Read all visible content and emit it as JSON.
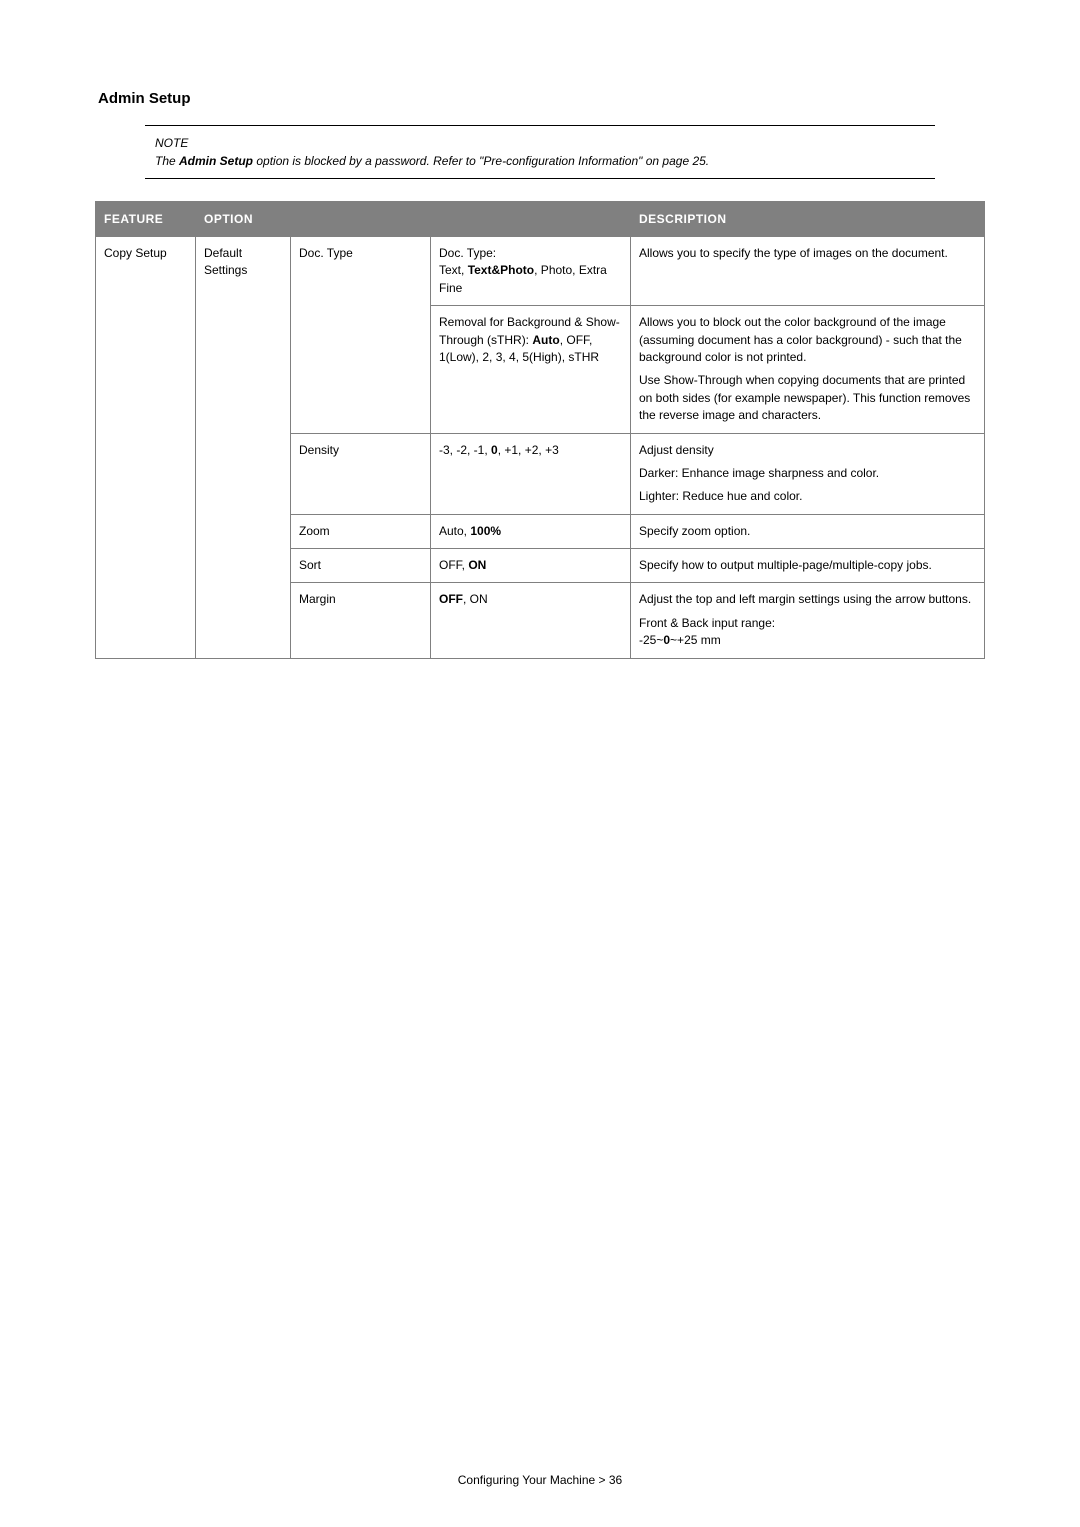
{
  "section_title": "Admin Setup",
  "note": {
    "label": "NOTE",
    "line1": "The ",
    "bold": "Admin Setup",
    "line1_rest": " option is blocked by a password. Refer to \"Pre-configuration Information\" on page 25."
  },
  "headers": {
    "feature": "FEATURE",
    "option": "OPTION",
    "description": "DESCRIPTION"
  },
  "rows": {
    "copy_setup": "Copy Setup",
    "default_settings": "Default Settings",
    "doc_type": {
      "sub": "Doc. Type",
      "val_l1": "Doc. Type:",
      "val_l2_a": "Text, ",
      "val_l2_b": "Text&Photo",
      "val_l2_c": ", Photo, Extra Fine",
      "desc1": "Allows you to specify the type of images on the document.",
      "rem_l1": "Removal for Background & Show-Through (sTHR): ",
      "rem_bold": "Auto",
      "rem_rest": ", OFF, 1(Low), 2, 3, 4, 5(High), sTHR",
      "desc2_p1": "Allows you to block out the color background of the image (assuming document has a color background) - such that the background color is not printed.",
      "desc2_p2": "Use Show-Through when copying documents that are printed on both sides (for example newspaper). This function removes the reverse image and characters."
    },
    "density": {
      "sub": "Density",
      "val_a": "-3, -2, -1, ",
      "val_bold": "0",
      "val_b": ", +1, +2, +3",
      "desc_p1": "Adjust density",
      "desc_p2": "Darker: Enhance image sharpness and color.",
      "desc_p3": "Lighter: Reduce hue and color."
    },
    "zoom": {
      "sub": "Zoom",
      "val_a": "Auto, ",
      "val_bold": "100%",
      "desc": "Specify zoom option."
    },
    "sort": {
      "sub": "Sort",
      "val_a": "OFF, ",
      "val_bold": "ON",
      "desc": "Specify how to output multiple-page/multiple-copy jobs."
    },
    "margin": {
      "sub": "Margin",
      "val_bold": "OFF",
      "val_b": ", ON",
      "desc_p1": "Adjust the top and left margin settings using the arrow buttons.",
      "desc_p2_a": "Front & Back input range:",
      "desc_p2_b": "-25~",
      "desc_p2_bold": "0",
      "desc_p2_c": "~+25 mm"
    }
  },
  "footer": "Configuring Your Machine > 36"
}
